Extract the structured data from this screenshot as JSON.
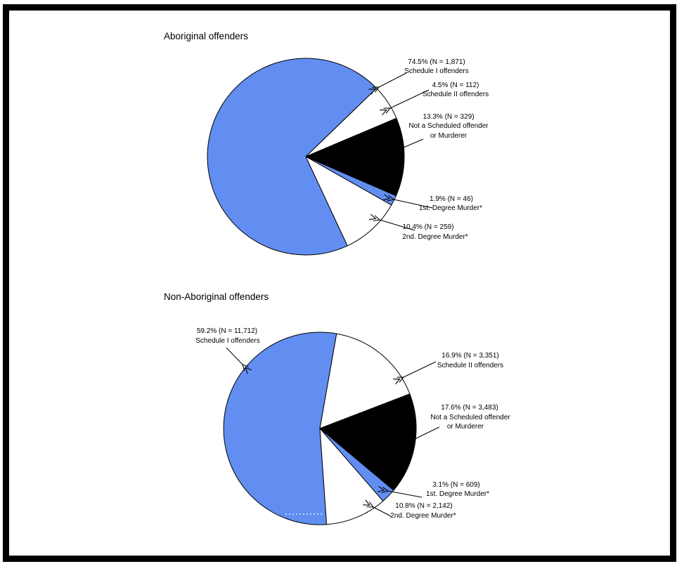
{
  "figure": {
    "background": "#ffffff",
    "frame_color": "#000000",
    "accent_blue": "#628EF2"
  },
  "charts": [
    {
      "title": "Aboriginal offenders",
      "callouts": [
        {
          "lines": [
            "74.5% (N = 1,871)",
            "Schedule I offenders"
          ]
        },
        {
          "lines": [
            "4.5% (N = 112)",
            "Schedule II offenders"
          ]
        },
        {
          "lines": [
            "13.3% (N = 329)",
            "Not a Scheduled offender",
            "or Murderer"
          ]
        },
        {
          "lines": [
            "1.9% (N = 46)",
            "1st. Degree Murder*"
          ]
        },
        {
          "lines": [
            "10.4% (N = 259)",
            "2nd. Degree Murder*"
          ]
        }
      ]
    },
    {
      "title": "Non-Aboriginal offenders",
      "callouts": [
        {
          "lines": [
            "59.2% (N = 11,712)",
            "Schedule I offenders"
          ]
        },
        {
          "lines": [
            "16.9% (N = 3,351)",
            "Schedule II offenders"
          ]
        },
        {
          "lines": [
            "17.6% (N = 3,483)",
            "Not a Scheduled offender",
            "or Murderer"
          ]
        },
        {
          "lines": [
            "3.1% (N = 609)",
            "1st. Degree Murder*"
          ]
        },
        {
          "lines": [
            "10.8% (N = 2,142)",
            "2nd. Degree Murder*"
          ]
        }
      ]
    }
  ],
  "chart_data": [
    {
      "type": "pie",
      "title": "Aboriginal offenders",
      "labels": [
        "Schedule I offenders",
        "Schedule II offenders",
        "Not a Scheduled offender or Murderer",
        "1st. Degree Murder*",
        "2nd. Degree Murder*"
      ],
      "values_pct": [
        74.5,
        4.5,
        13.3,
        1.9,
        10.4
      ],
      "counts": [
        1871,
        112,
        329,
        46,
        259
      ],
      "slice_colors": [
        "#628EF2",
        "#FFFFFF",
        "#000000",
        "#628EF2",
        "#FFFFFF"
      ],
      "slice_angles_deg": [
        [
          65,
          316
        ],
        [
          -44,
          -23
        ],
        [
          -23,
          23.5
        ],
        [
          23.5,
          29.5
        ],
        [
          29.5,
          65
        ]
      ],
      "legend_position": "callout labels with arrows"
    },
    {
      "type": "pie",
      "title": "Non-Aboriginal offenders",
      "labels": [
        "Schedule I offenders",
        "Schedule II offenders",
        "Not a Scheduled offender or Murderer",
        "1st. Degree Murder*",
        "2nd. Degree Murder*"
      ],
      "values_pct": [
        59.2,
        16.9,
        17.6,
        3.1,
        10.8
      ],
      "counts": [
        11712,
        3351,
        3483,
        609,
        2142
      ],
      "slice_colors": [
        "#628EF2",
        "#FFFFFF",
        "#000000",
        "#628EF2",
        "#FFFFFF"
      ],
      "slice_angles_deg": [
        [
          86,
          280
        ],
        [
          -80,
          -21
        ],
        [
          -21,
          40
        ],
        [
          40,
          49
        ],
        [
          49,
          86
        ]
      ],
      "legend_position": "callout labels with arrows"
    }
  ]
}
